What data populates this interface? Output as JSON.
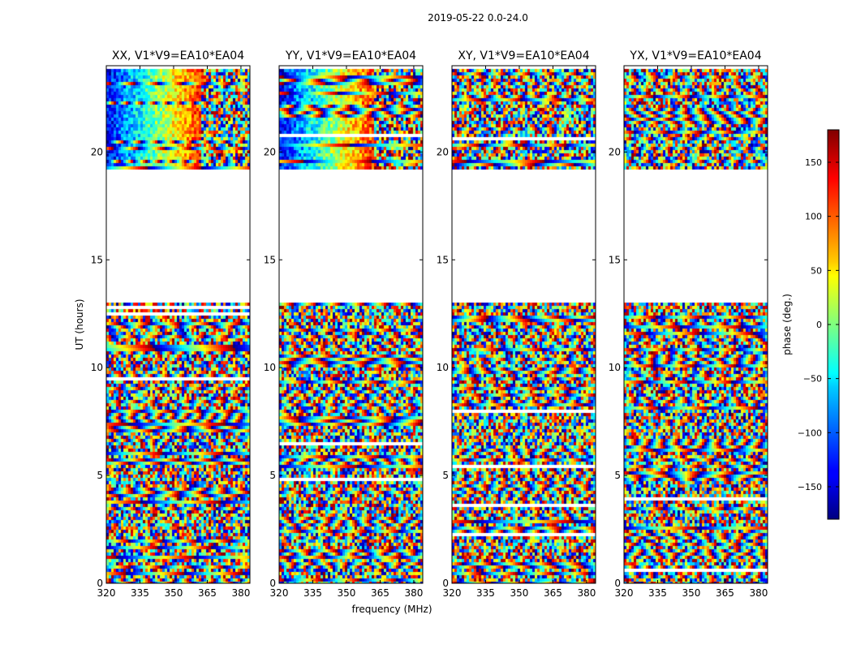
{
  "figure": {
    "suptitle": "2019-05-22 0.0-24.0",
    "xlabel": "frequency (MHz)",
    "ylabel": "UT (hours)"
  },
  "chart_data": {
    "type": "heatmap",
    "x_ticks": [
      "320",
      "335",
      "350",
      "365",
      "380"
    ],
    "x_tick_values": [
      320,
      335,
      350,
      365,
      380
    ],
    "xlim": [
      320,
      384
    ],
    "y_ticks": [
      "0",
      "5",
      "10",
      "15",
      "20"
    ],
    "y_tick_values": [
      0,
      5,
      10,
      15,
      20
    ],
    "ylim": [
      0,
      24
    ],
    "missing_ut_range_hours": [
      13.1,
      19.3
    ],
    "panels": [
      {
        "title": "XX, V1*V9=EA10*EA04",
        "polarization": "XX"
      },
      {
        "title": "YY, V1*V9=EA10*EA04",
        "polarization": "YY"
      },
      {
        "title": "XY, V1*V9=EA10*EA04",
        "polarization": "XY"
      },
      {
        "title": "YX, V1*V9=EA10*EA04",
        "polarization": "YX"
      }
    ],
    "colorbar": {
      "label": "phase (deg.)",
      "range": [
        -180,
        180
      ],
      "ticks": [
        "150",
        "100",
        "50",
        "0",
        "−50",
        "−100",
        "−150"
      ],
      "tick_values": [
        150,
        100,
        50,
        0,
        -50,
        -100,
        -150
      ],
      "colormap": "jet"
    }
  }
}
